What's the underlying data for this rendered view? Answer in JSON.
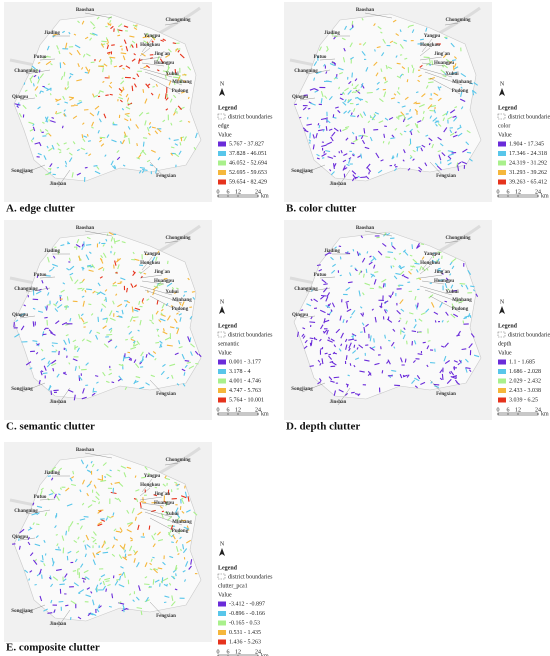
{
  "districts": [
    "Baoshan",
    "Chongming",
    "Jiading",
    "Yangpu",
    "Hongkou",
    "Putuo",
    "Jing'an",
    "Huangpu",
    "Changning",
    "Xuhui",
    "Minhang",
    "Pudong",
    "Qingpu",
    "Songjiang",
    "Jinshan",
    "Fengxian"
  ],
  "legend": {
    "title": "Legend",
    "boundary": "district boundaries",
    "value": "Value",
    "north": "N"
  },
  "scale_bar": {
    "ticks": [
      0,
      6,
      12,
      24
    ],
    "unit": "km"
  },
  "class_colors": [
    "#6a2bd9",
    "#58c6ea",
    "#a9f08c",
    "#f5b73c",
    "#e6331d"
  ],
  "panels": [
    {
      "caption": "A. edge clutter",
      "layer": "edge",
      "classes": [
        "5.767 - 37.827",
        "37.828 - 46.051",
        "46.052 - 52.694",
        "52.695 - 59.653",
        "59.654 - 82.429"
      ]
    },
    {
      "caption": "B. color clutter",
      "layer": "color",
      "classes": [
        "1.904 - 17.345",
        "17.346 - 24.318",
        "24.319 - 31.292",
        "31.293 - 39.262",
        "39.263 - 65.412"
      ]
    },
    {
      "caption": "C. semantic clutter",
      "layer": "semantic",
      "classes": [
        "0.001 - 3.177",
        "3.178 - 4",
        "4.001 - 4.746",
        "4.747 - 5.763",
        "5.764 - 10.001"
      ]
    },
    {
      "caption": "D. depth clutter",
      "layer": "depth",
      "classes": [
        "1.1 - 1.685",
        "1.686 - 2.028",
        "2.029 - 2.432",
        "2.433 - 3.038",
        "3.039 - 6.25"
      ]
    },
    {
      "caption": "E. composite clutter",
      "layer": "clutter_pca1",
      "classes": [
        "-3.412 - -0.897",
        "-0.896 - -0.166",
        "-0.165 - 0.53",
        "0.531 - 1.435",
        "1.436 - 5.263"
      ]
    }
  ]
}
